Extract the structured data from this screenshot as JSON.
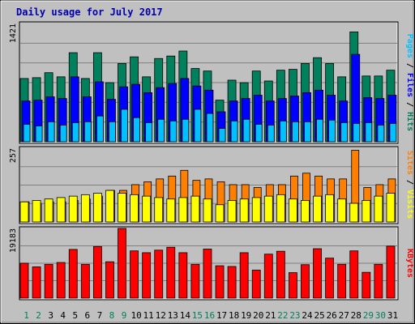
{
  "title": "Daily usage for July 2017",
  "colors": {
    "background": "#c0c0c0",
    "hits": "#00805c",
    "files": "#0000ff",
    "pages": "#00c0ff",
    "visits": "#ffff00",
    "sites": "#ff8000",
    "kbytes": "#ff0000",
    "weekend_label": "#00805c",
    "weekday_label": "#000000"
  },
  "chart_data": [
    {
      "type": "bar",
      "panel": "hits",
      "y_max_label": "1421",
      "ylim": [
        0,
        1421
      ],
      "grid": true,
      "categories": [
        "1",
        "2",
        "3",
        "4",
        "5",
        "6",
        "7",
        "8",
        "9",
        "10",
        "11",
        "12",
        "13",
        "14",
        "15",
        "16",
        "17",
        "18",
        "19",
        "20",
        "21",
        "22",
        "23",
        "24",
        "25",
        "26",
        "27",
        "28",
        "29",
        "30",
        "31"
      ],
      "weekend": [
        1,
        2,
        8,
        9,
        15,
        16,
        22,
        23,
        29,
        30
      ],
      "series": [
        {
          "name": "Hits",
          "values": [
            760,
            770,
            830,
            780,
            1070,
            760,
            1070,
            710,
            940,
            1020,
            780,
            1000,
            1030,
            1090,
            880,
            850,
            500,
            740,
            710,
            850,
            730,
            860,
            870,
            940,
            1010,
            940,
            780,
            1320,
            790,
            790,
            860
          ]
        },
        {
          "name": "Files",
          "values": [
            490,
            500,
            540,
            520,
            780,
            540,
            720,
            510,
            660,
            690,
            590,
            650,
            700,
            760,
            670,
            620,
            360,
            490,
            520,
            560,
            490,
            520,
            550,
            590,
            620,
            560,
            490,
            1050,
            530,
            520,
            560
          ]
        },
        {
          "name": "Pages",
          "values": [
            210,
            190,
            240,
            200,
            230,
            240,
            310,
            240,
            390,
            290,
            230,
            270,
            250,
            270,
            390,
            340,
            160,
            250,
            270,
            210,
            200,
            250,
            240,
            240,
            270,
            260,
            230,
            220,
            230,
            200,
            220
          ]
        }
      ],
      "side_labels": [
        "Pages",
        "Files",
        "Hits"
      ]
    },
    {
      "type": "bar",
      "panel": "visits",
      "y_max_label": "257",
      "ylim": [
        0,
        257
      ],
      "grid": true,
      "categories": [
        "1",
        "2",
        "3",
        "4",
        "5",
        "6",
        "7",
        "8",
        "9",
        "10",
        "11",
        "12",
        "13",
        "14",
        "15",
        "16",
        "17",
        "18",
        "19",
        "20",
        "21",
        "22",
        "23",
        "24",
        "25",
        "26",
        "27",
        "28",
        "29",
        "30",
        "31"
      ],
      "weekend": [
        1,
        2,
        8,
        9,
        15,
        16,
        22,
        23,
        29,
        30
      ],
      "series": [
        {
          "name": "Visits",
          "values": [
            70,
            75,
            80,
            85,
            90,
            95,
            100,
            110,
            100,
            95,
            90,
            85,
            80,
            85,
            90,
            80,
            60,
            75,
            80,
            85,
            90,
            95,
            80,
            75,
            90,
            95,
            80,
            65,
            75,
            90,
            100
          ]
        },
        {
          "name": "Sites",
          "values": [
            70,
            65,
            70,
            70,
            75,
            80,
            90,
            110,
            110,
            130,
            140,
            150,
            160,
            180,
            145,
            150,
            140,
            130,
            130,
            120,
            130,
            130,
            160,
            170,
            160,
            150,
            150,
            250,
            120,
            130,
            150
          ]
        }
      ],
      "side_labels": [
        "Sites",
        "Visits"
      ]
    },
    {
      "type": "bar",
      "panel": "kbytes",
      "y_max_label": "19183",
      "ylim": [
        0,
        19183
      ],
      "grid": true,
      "categories": [
        "1",
        "2",
        "3",
        "4",
        "5",
        "6",
        "7",
        "8",
        "9",
        "10",
        "11",
        "12",
        "13",
        "14",
        "15",
        "16",
        "17",
        "18",
        "19",
        "20",
        "21",
        "22",
        "23",
        "24",
        "25",
        "26",
        "27",
        "28",
        "29",
        "30",
        "31"
      ],
      "weekend": [
        1,
        2,
        8,
        9,
        15,
        16,
        22,
        23,
        29,
        30
      ],
      "series": [
        {
          "name": "KBytes",
          "values": [
            9600,
            8600,
            9300,
            9800,
            13400,
            9300,
            14200,
            10000,
            19183,
            13000,
            12500,
            13200,
            14000,
            12500,
            9300,
            13500,
            8900,
            8700,
            12500,
            7700,
            12100,
            12900,
            7000,
            9200,
            13600,
            11000,
            9300,
            13000,
            7100,
            9300,
            14300
          ]
        }
      ],
      "side_labels": [
        "KBytes"
      ]
    }
  ]
}
